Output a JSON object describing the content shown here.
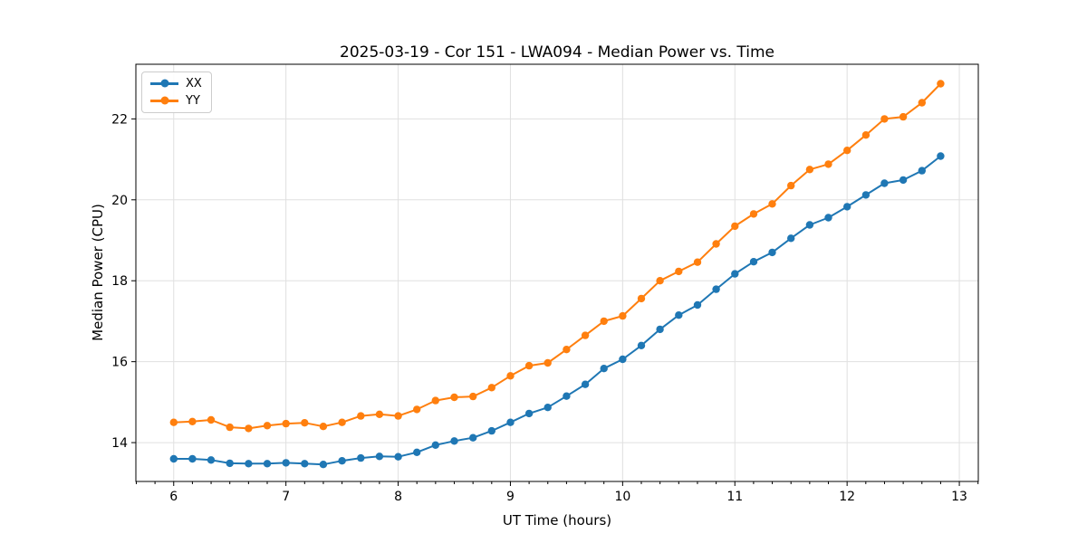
{
  "title": "2025-03-19 - Cor 151 - LWA094 - Median Power vs. Time",
  "chart_data": {
    "type": "line",
    "title": "2025-03-19 - Cor 151 - LWA094 - Median Power vs. Time",
    "xlabel": "UT Time (hours)",
    "ylabel": "Median Power (CPU)",
    "xlim": [
      5.663,
      13.169
    ],
    "ylim": [
      13.04,
      23.35
    ],
    "x_major_ticks": [
      6,
      7,
      8,
      9,
      10,
      11,
      12,
      13
    ],
    "y_major_ticks": [
      14,
      16,
      18,
      20,
      22
    ],
    "x_minor_step": 0.166667,
    "grid": true,
    "legend_position": "upper-left",
    "colors": {
      "grid": "#e0e0e0",
      "spine": "#000000",
      "text": "#000000"
    },
    "x": [
      6.0,
      6.167,
      6.333,
      6.5,
      6.667,
      6.833,
      7.0,
      7.167,
      7.333,
      7.5,
      7.667,
      7.833,
      8.0,
      8.167,
      8.333,
      8.5,
      8.667,
      8.833,
      9.0,
      9.167,
      9.333,
      9.5,
      9.667,
      9.833,
      10.0,
      10.167,
      10.333,
      10.5,
      10.667,
      10.833,
      11.0,
      11.167,
      11.333,
      11.5,
      11.667,
      11.833,
      12.0,
      12.167,
      12.333,
      12.5,
      12.667,
      12.833
    ],
    "series": [
      {
        "name": "XX",
        "color": "#1f77b4",
        "values": [
          13.6,
          13.6,
          13.57,
          13.49,
          13.48,
          13.48,
          13.5,
          13.48,
          13.46,
          13.55,
          13.62,
          13.66,
          13.65,
          13.76,
          13.94,
          14.04,
          14.12,
          14.29,
          14.5,
          14.72,
          14.87,
          15.15,
          15.44,
          15.83,
          16.06,
          16.4,
          16.8,
          17.15,
          17.4,
          17.79,
          18.17,
          18.47,
          18.7,
          19.05,
          19.38,
          19.56,
          19.83,
          20.12,
          20.41,
          20.49,
          20.72,
          21.08
        ]
      },
      {
        "name": "YY",
        "color": "#ff7f0e",
        "values": [
          14.5,
          14.52,
          14.56,
          14.38,
          14.35,
          14.42,
          14.47,
          14.49,
          14.4,
          14.5,
          14.66,
          14.7,
          14.66,
          14.82,
          15.04,
          15.12,
          15.14,
          15.36,
          15.65,
          15.9,
          15.97,
          16.3,
          16.65,
          17.0,
          17.13,
          17.56,
          18.0,
          18.23,
          18.46,
          18.91,
          19.35,
          19.65,
          19.9,
          20.35,
          20.75,
          20.88,
          21.22,
          21.6,
          22.0,
          22.05,
          22.4,
          22.87
        ]
      }
    ]
  }
}
